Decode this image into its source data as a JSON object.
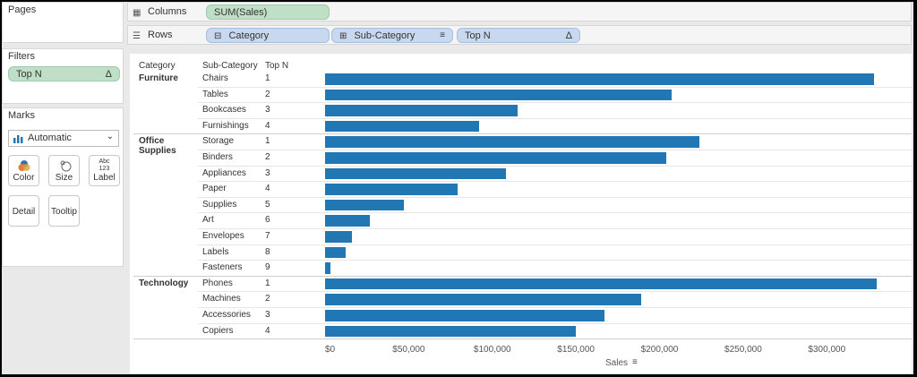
{
  "pages": {
    "title": "Pages"
  },
  "columns": {
    "label": "Columns",
    "pill": "SUM(Sales)"
  },
  "rows": {
    "label": "Rows",
    "pills": [
      "Category",
      "Sub-Category",
      "Top N"
    ]
  },
  "filters": {
    "title": "Filters",
    "pill": "Top N",
    "pill_icon": "Δ"
  },
  "marks": {
    "title": "Marks",
    "type": "Automatic",
    "buttons": [
      {
        "label": "Color",
        "icon": "color-icon"
      },
      {
        "label": "Size",
        "icon": "size-icon"
      },
      {
        "label": "Label",
        "icon": "label-icon",
        "glyph": "Abc 123"
      },
      {
        "label": "Detail",
        "icon": "detail-icon"
      },
      {
        "label": "Tooltip",
        "icon": "tooltip-icon"
      }
    ]
  },
  "headers": [
    "Category",
    "Sub-Category",
    "Top N"
  ],
  "bar_color": "#2077b4",
  "chart_data": {
    "type": "bar",
    "orientation": "horizontal",
    "xlabel": "Sales",
    "xlim": [
      0,
      340000
    ],
    "ticks": [
      0,
      50000,
      100000,
      150000,
      200000,
      250000,
      300000
    ],
    "tick_labels": [
      "$0",
      "$50,000",
      "$100,000",
      "$150,000",
      "$200,000",
      "$250,000",
      "$300,000"
    ],
    "groups": [
      {
        "category": "Furniture",
        "rows": [
          {
            "sub": "Chairs",
            "rank": 1,
            "value": 328000
          },
          {
            "sub": "Tables",
            "rank": 2,
            "value": 207000
          },
          {
            "sub": "Bookcases",
            "rank": 3,
            "value": 115000
          },
          {
            "sub": "Furnishings",
            "rank": 4,
            "value": 92000
          }
        ]
      },
      {
        "category": "Office Supplies",
        "rows": [
          {
            "sub": "Storage",
            "rank": 1,
            "value": 224000
          },
          {
            "sub": "Binders",
            "rank": 2,
            "value": 204000
          },
          {
            "sub": "Appliances",
            "rank": 3,
            "value": 108000
          },
          {
            "sub": "Paper",
            "rank": 4,
            "value": 79000
          },
          {
            "sub": "Supplies",
            "rank": 5,
            "value": 47000
          },
          {
            "sub": "Art",
            "rank": 6,
            "value": 27000
          },
          {
            "sub": "Envelopes",
            "rank": 7,
            "value": 16000
          },
          {
            "sub": "Labels",
            "rank": 8,
            "value": 12500
          },
          {
            "sub": "Fasteners",
            "rank": 9,
            "value": 3000
          }
        ]
      },
      {
        "category": "Technology",
        "rows": [
          {
            "sub": "Phones",
            "rank": 1,
            "value": 330000
          },
          {
            "sub": "Machines",
            "rank": 2,
            "value": 189000
          },
          {
            "sub": "Accessories",
            "rank": 3,
            "value": 167000
          },
          {
            "sub": "Copiers",
            "rank": 4,
            "value": 150000
          }
        ]
      }
    ]
  }
}
